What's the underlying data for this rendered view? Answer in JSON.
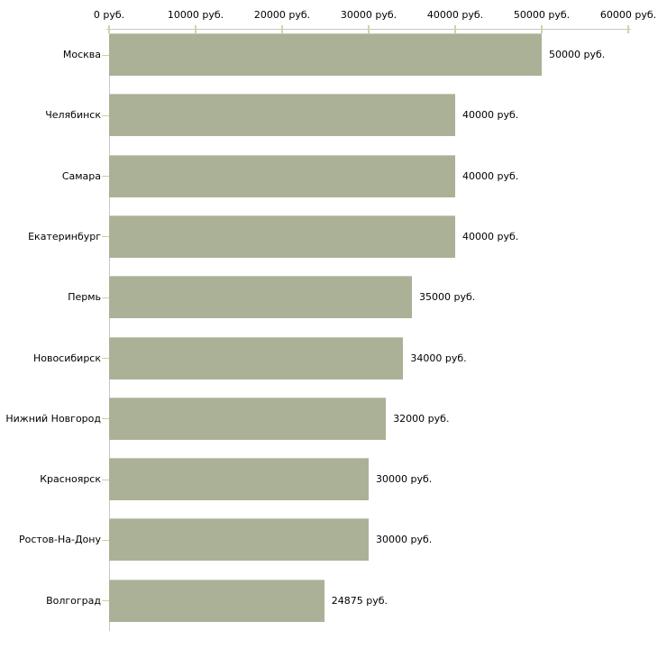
{
  "chart_data": {
    "type": "bar",
    "orientation": "horizontal",
    "unit": "руб.",
    "categories": [
      "Москва",
      "Челябинск",
      "Самара",
      "Екатеринбург",
      "Пермь",
      "Новосибирск",
      "Нижний Новгород",
      "Красноярск",
      "Ростов-На-Дону",
      "Волгоград"
    ],
    "values": [
      50000,
      40000,
      40000,
      40000,
      35000,
      34000,
      32000,
      30000,
      30000,
      24875
    ],
    "bar_labels": [
      "50000 руб.",
      "40000 руб.",
      "40000 руб.",
      "40000 руб.",
      "35000 руб.",
      "34000 руб.",
      "32000 руб.",
      "30000 руб.",
      "30000 руб.",
      "24875 руб."
    ],
    "x_axis": {
      "tick_values": [
        0,
        10000,
        20000,
        30000,
        40000,
        50000,
        60000
      ],
      "tick_labels": [
        "0 руб.",
        "10000 руб.",
        "20000 руб.",
        "30000 руб.",
        "40000 руб.",
        "50000 руб.",
        "60000 руб."
      ],
      "range": [
        0,
        60000
      ]
    },
    "ylabel": "",
    "xlabel": "",
    "grid": "off",
    "legend": "none",
    "colors": {
      "bar": "#abb197",
      "bar_top_edge": "#c6cab3",
      "axis": "#c8c8c8",
      "tick": "#d3d3a7",
      "category_tick": "#cfcf9f",
      "text": "#000000",
      "background": "#ffffff"
    }
  }
}
